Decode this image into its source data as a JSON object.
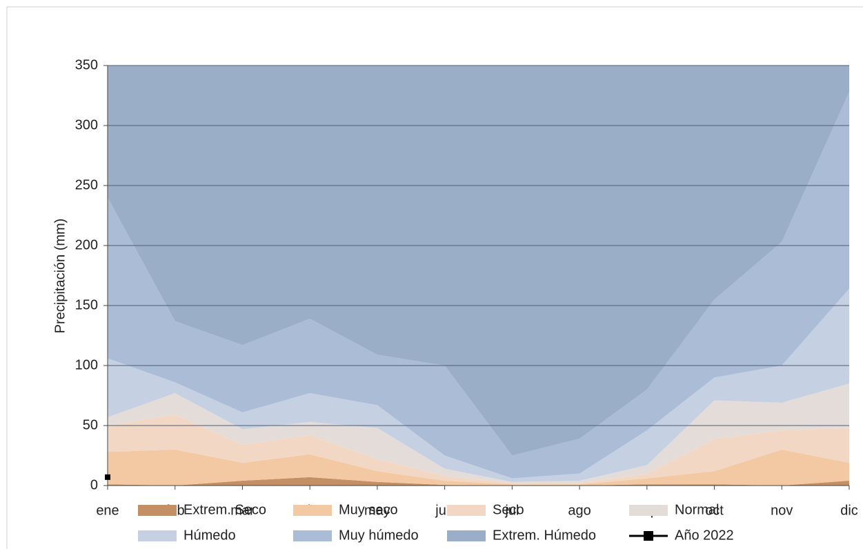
{
  "chart_data": {
    "type": "area",
    "stacked": true,
    "y_label": "Precipitación (mm)",
    "categories": [
      "ene",
      "feb",
      "mar",
      "abr",
      "may",
      "jun",
      "jul",
      "ago",
      "sep",
      "oct",
      "nov",
      "dic"
    ],
    "ylim": [
      0,
      350
    ],
    "yticks": [
      0,
      50,
      100,
      150,
      200,
      250,
      300,
      350
    ],
    "grid": true,
    "series": [
      {
        "name": "Extrem. Seco",
        "color": "#c48f65",
        "values": [
          1,
          0,
          4,
          7,
          3,
          0.5,
          0,
          0,
          1,
          1,
          0,
          4
        ]
      },
      {
        "name": "Muy seco",
        "color": "#f3c9a4",
        "values": [
          27,
          30,
          15,
          19,
          9,
          3.5,
          1,
          1,
          5,
          11,
          30,
          15
        ]
      },
      {
        "name": "Seco",
        "color": "#f2d8c4",
        "values": [
          22,
          29,
          15,
          16,
          10,
          4,
          1,
          1,
          4,
          27,
          16,
          29
        ]
      },
      {
        "name": "Normal",
        "color": "#e4dcd8",
        "values": [
          7,
          18,
          13,
          11,
          26,
          6,
          1,
          2,
          7,
          32,
          23,
          37
        ]
      },
      {
        "name": "Húmedo",
        "color": "#c5d0e2",
        "values": [
          49,
          9,
          14,
          24,
          19,
          11,
          3,
          6,
          29,
          19,
          31,
          79
        ]
      },
      {
        "name": "Muy húmedo",
        "color": "#abbcd6",
        "values": [
          134,
          51,
          56,
          62,
          42,
          75,
          19,
          29,
          34,
          65,
          103,
          164
        ]
      },
      {
        "name": "Extrem. Húmedo",
        "color": "#9aaec8",
        "values": [
          110,
          213,
          233,
          211,
          241,
          250,
          325,
          311,
          270,
          195,
          147,
          22
        ]
      },
      {
        "name": "Año 2022",
        "color": "#000000",
        "kind": "line",
        "values": [
          7,
          null,
          null,
          null,
          null,
          null,
          null,
          null,
          null,
          null,
          null,
          null
        ]
      }
    ]
  }
}
